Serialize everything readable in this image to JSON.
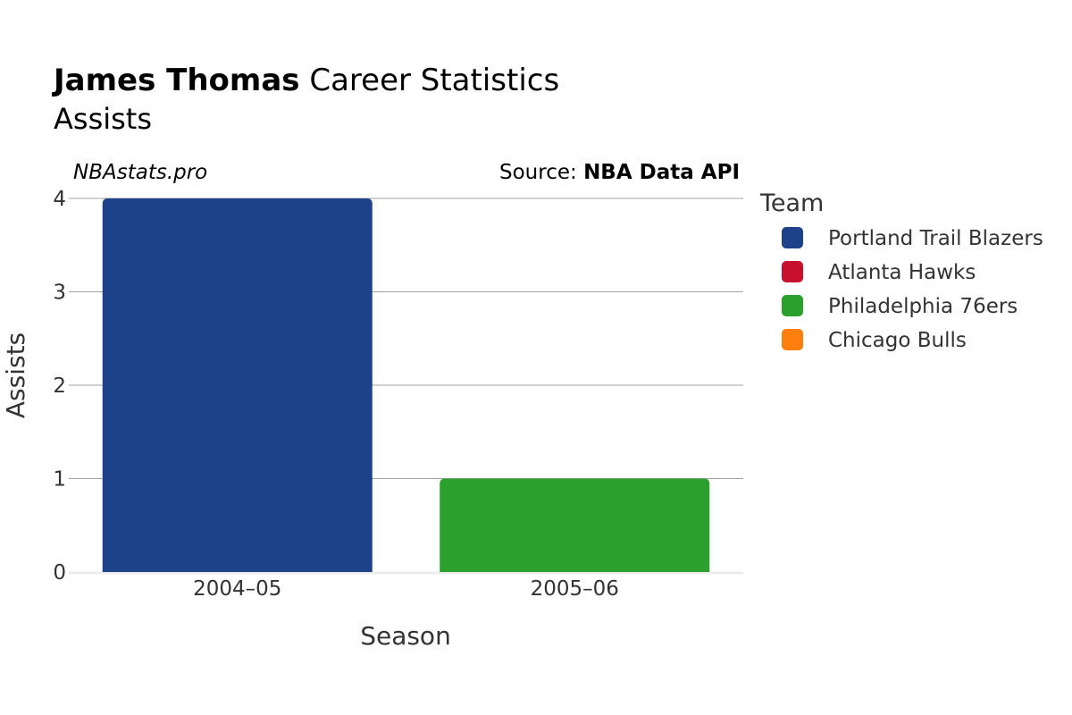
{
  "title": {
    "player": "James Thomas",
    "rest": " Career Statistics",
    "subtitle": "Assists"
  },
  "watermark": "NBAstats.pro",
  "source": {
    "prefix": "Source: ",
    "name": "NBA Data API"
  },
  "legend": {
    "title": "Team",
    "items": [
      {
        "label": "Portland Trail Blazers",
        "color": "#1d428a"
      },
      {
        "label": "Atlanta Hawks",
        "color": "#c8102e"
      },
      {
        "label": "Philadelphia 76ers",
        "color": "#2ca02c"
      },
      {
        "label": "Chicago Bulls",
        "color": "#ff7f0e"
      }
    ]
  },
  "chart_data": {
    "type": "bar",
    "title": "James Thomas Career Statistics",
    "subtitle": "Assists",
    "xlabel": "Season",
    "ylabel": "Assists",
    "categories": [
      "2004–05",
      "2005–06"
    ],
    "series": [
      {
        "name": "Portland Trail Blazers",
        "color": "#1d428a",
        "values": [
          4,
          0
        ]
      },
      {
        "name": "Atlanta Hawks",
        "color": "#c8102e",
        "values": [
          0,
          0
        ]
      },
      {
        "name": "Philadelphia 76ers",
        "color": "#2ca02c",
        "values": [
          0,
          1
        ]
      },
      {
        "name": "Chicago Bulls",
        "color": "#ff7f0e",
        "values": [
          0,
          0
        ]
      }
    ],
    "ylim": [
      0,
      4
    ],
    "yticks": [
      0,
      1,
      2,
      3,
      4
    ],
    "grid": true,
    "legend_position": "right"
  }
}
